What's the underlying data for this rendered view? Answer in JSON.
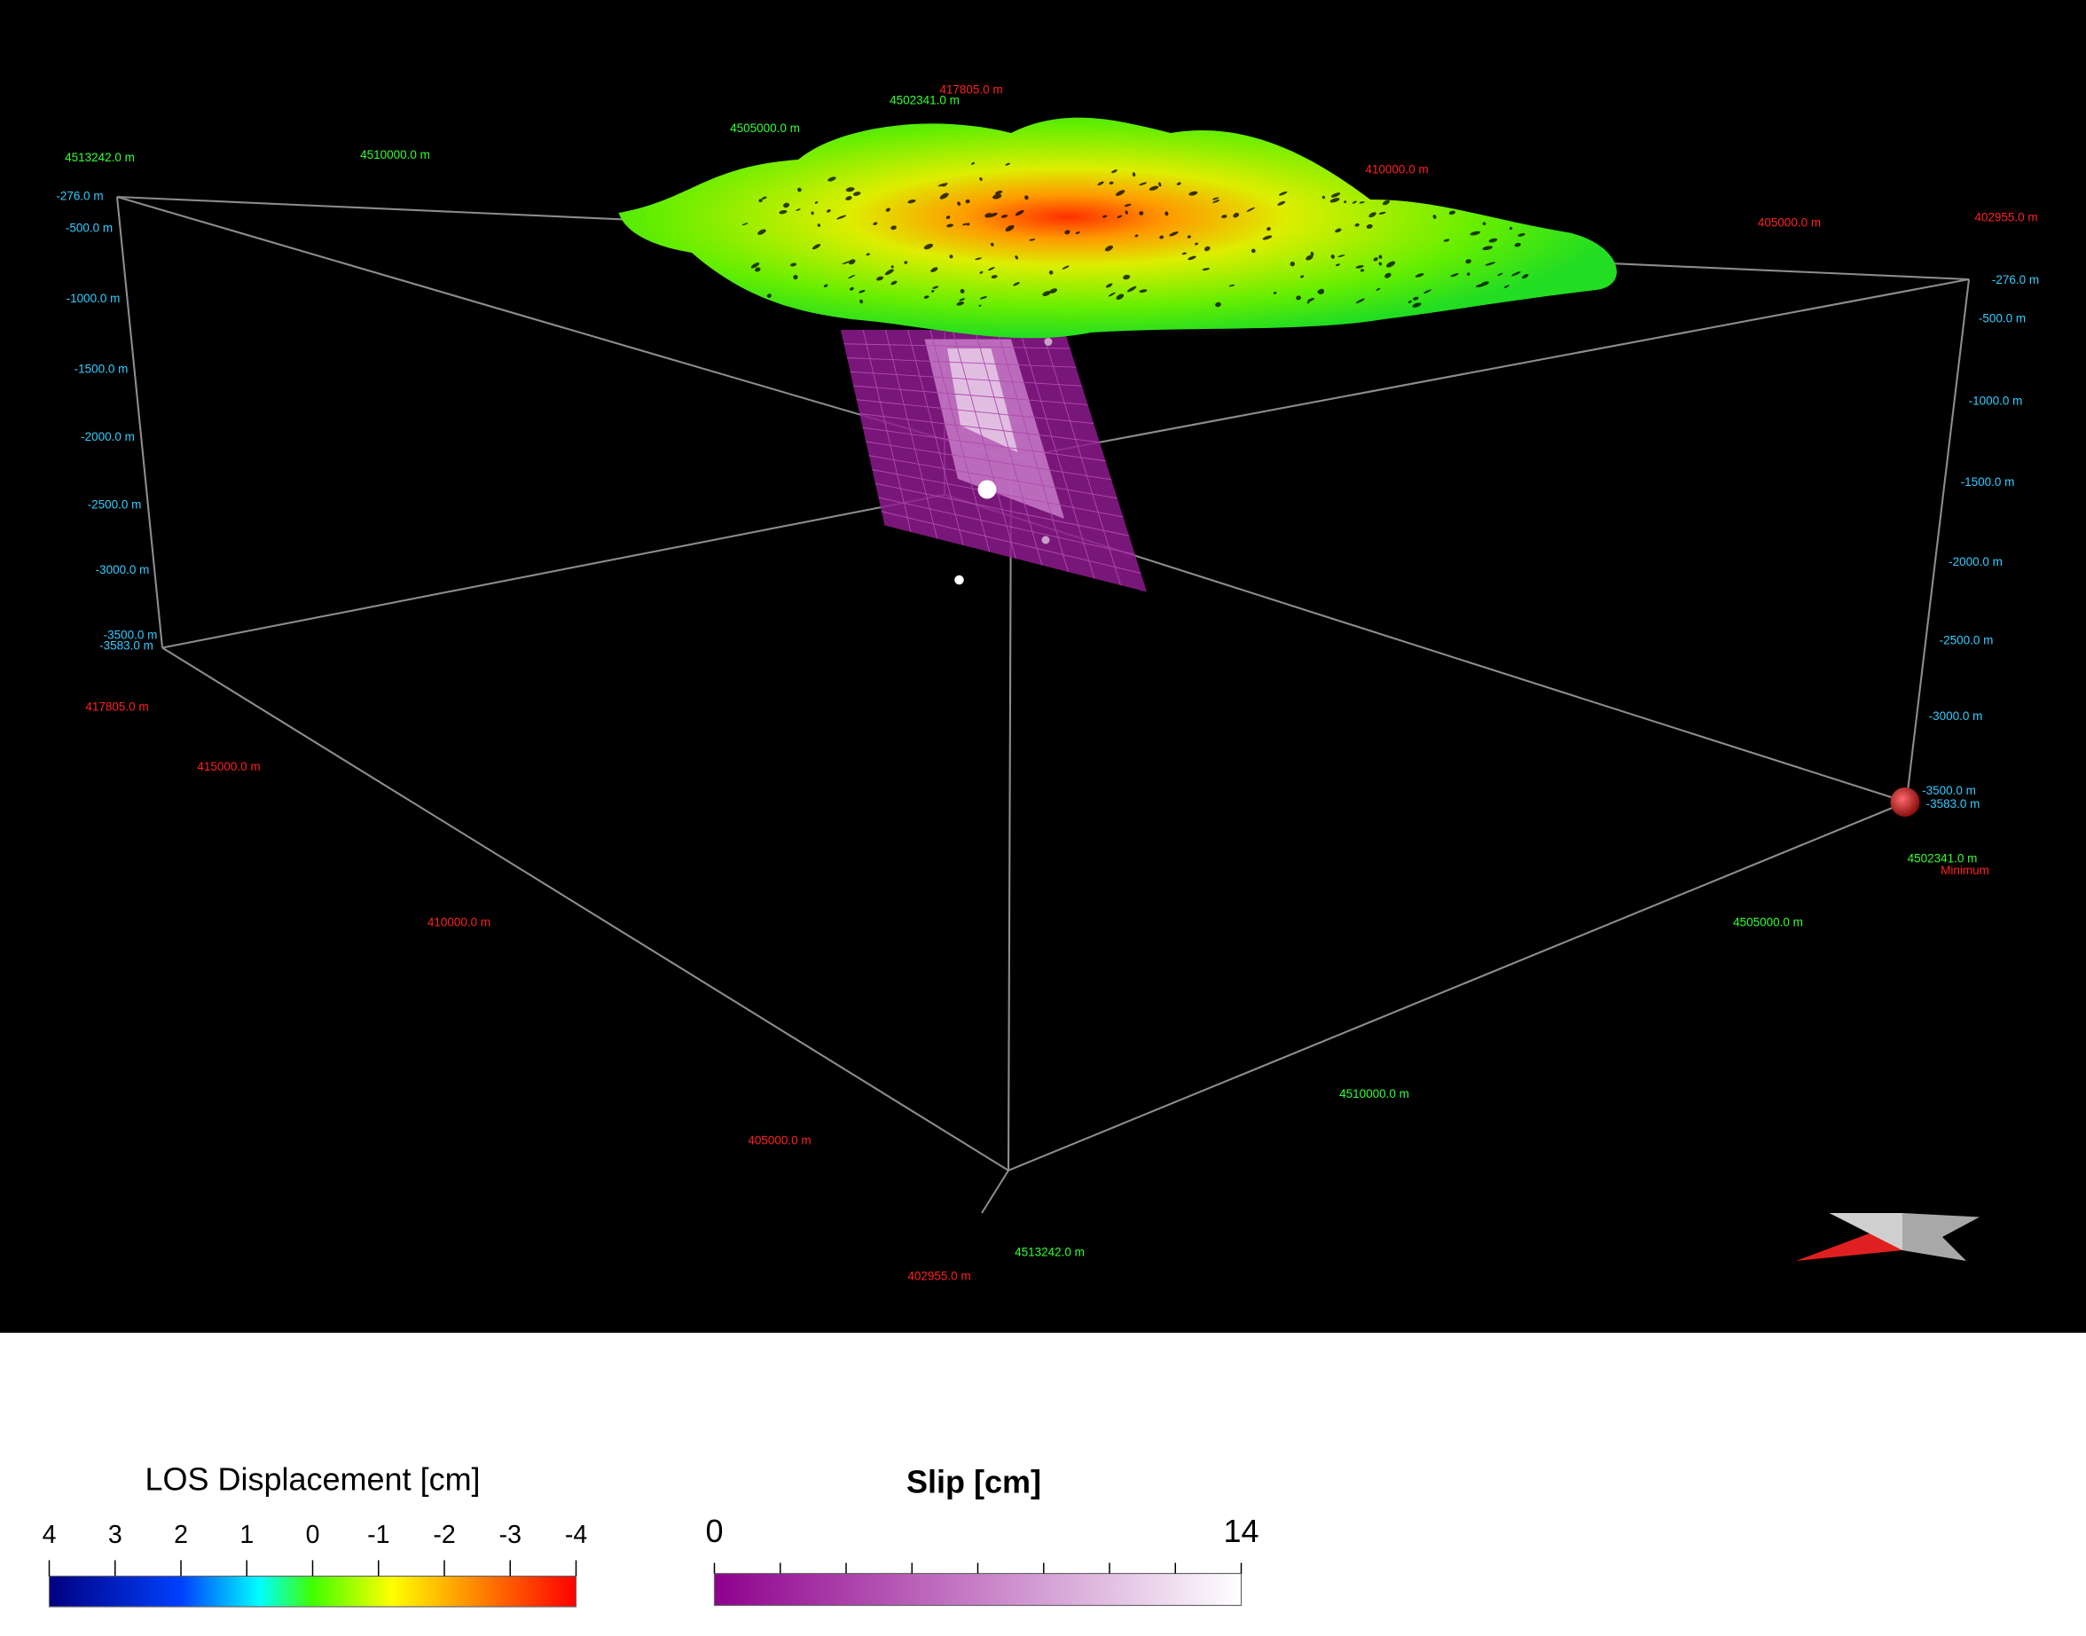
{
  "scene": {
    "x_labels": [
      "417805.0 m",
      "410000.0 m",
      "405000.0 m",
      "402955.0 m",
      "417805.0 m",
      "415000.0 m",
      "410000.0 m",
      "405000.0 m",
      "402955.0 m"
    ],
    "y_labels": [
      "4502341.0 m",
      "4505000.0 m",
      "4510000.0 m",
      "4513242.0 m",
      "4502341.0 m",
      "4505000.0 m",
      "4510000.0 m",
      "4513242.0 m"
    ],
    "z_labels_left": [
      "-276.0 m",
      "-500.0 m",
      "-1000.0 m",
      "-1500.0 m",
      "-2000.0 m",
      "-2500.0 m",
      "-3000.0 m",
      "-3500.0 m",
      "-3583.0 m"
    ],
    "z_labels_right": [
      "-276.0 m",
      "-500.0 m",
      "-1000.0 m",
      "-1500.0 m",
      "-2000.0 m",
      "-2500.0 m",
      "-3000.0 m",
      "-3500.0 m",
      "-3583.0 m"
    ],
    "marker_label": "Minimum"
  },
  "legends": [
    {
      "title": "LOS Displacement [cm]",
      "ticks": [
        4,
        3,
        2,
        1,
        0,
        -1,
        -2,
        -3,
        -4
      ]
    },
    {
      "title": "Slip [cm]",
      "ticks": [
        0,
        14
      ]
    }
  ]
}
